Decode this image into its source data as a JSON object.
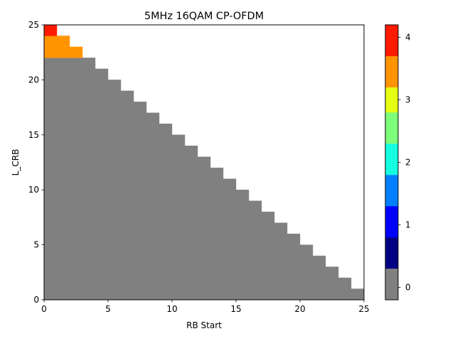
{
  "chart_data": {
    "type": "heatmap",
    "title": "5MHz 16QAM CP-OFDM",
    "xlabel": "RB Start",
    "ylabel": "L_CRB",
    "xlim": [
      0,
      25
    ],
    "ylim": [
      0,
      25
    ],
    "xticks": [
      "0",
      "5",
      "10",
      "15",
      "20",
      "25"
    ],
    "yticks": [
      "0",
      "5",
      "10",
      "15",
      "20",
      "25"
    ],
    "grid": false,
    "description": "Value for cell (RB Start = s, L_CRB = L) shown where s + L <= 25; upper-right triangle is empty",
    "columns": [
      {
        "rb_start": 0,
        "values": [
          0,
          0,
          0,
          0,
          0,
          0,
          0,
          0,
          0,
          0,
          0,
          0,
          0,
          0,
          0,
          0,
          0,
          0,
          0,
          0,
          0,
          0,
          3.6,
          3.6,
          4
        ]
      },
      {
        "rb_start": 1,
        "values": [
          0,
          0,
          0,
          0,
          0,
          0,
          0,
          0,
          0,
          0,
          0,
          0,
          0,
          0,
          0,
          0,
          0,
          0,
          0,
          0,
          0,
          0,
          3.6,
          3.6
        ]
      },
      {
        "rb_start": 2,
        "values": [
          0,
          0,
          0,
          0,
          0,
          0,
          0,
          0,
          0,
          0,
          0,
          0,
          0,
          0,
          0,
          0,
          0,
          0,
          0,
          0,
          0,
          0,
          3.6
        ]
      },
      {
        "rb_start": 3,
        "values": [
          0,
          0,
          0,
          0,
          0,
          0,
          0,
          0,
          0,
          0,
          0,
          0,
          0,
          0,
          0,
          0,
          0,
          0,
          0,
          0,
          0,
          0
        ]
      },
      {
        "rb_start": 4,
        "values": [
          0,
          0,
          0,
          0,
          0,
          0,
          0,
          0,
          0,
          0,
          0,
          0,
          0,
          0,
          0,
          0,
          0,
          0,
          0,
          0,
          0
        ]
      },
      {
        "rb_start": 5,
        "values": [
          0,
          0,
          0,
          0,
          0,
          0,
          0,
          0,
          0,
          0,
          0,
          0,
          0,
          0,
          0,
          0,
          0,
          0,
          0,
          0
        ]
      },
      {
        "rb_start": 6,
        "values": [
          0,
          0,
          0,
          0,
          0,
          0,
          0,
          0,
          0,
          0,
          0,
          0,
          0,
          0,
          0,
          0,
          0,
          0,
          0
        ]
      },
      {
        "rb_start": 7,
        "values": [
          0,
          0,
          0,
          0,
          0,
          0,
          0,
          0,
          0,
          0,
          0,
          0,
          0,
          0,
          0,
          0,
          0,
          0
        ]
      },
      {
        "rb_start": 8,
        "values": [
          0,
          0,
          0,
          0,
          0,
          0,
          0,
          0,
          0,
          0,
          0,
          0,
          0,
          0,
          0,
          0,
          0
        ]
      },
      {
        "rb_start": 9,
        "values": [
          0,
          0,
          0,
          0,
          0,
          0,
          0,
          0,
          0,
          0,
          0,
          0,
          0,
          0,
          0,
          0
        ]
      },
      {
        "rb_start": 10,
        "values": [
          0,
          0,
          0,
          0,
          0,
          0,
          0,
          0,
          0,
          0,
          0,
          0,
          0,
          0,
          0
        ]
      },
      {
        "rb_start": 11,
        "values": [
          0,
          0,
          0,
          0,
          0,
          0,
          0,
          0,
          0,
          0,
          0,
          0,
          0,
          0
        ]
      },
      {
        "rb_start": 12,
        "values": [
          0,
          0,
          0,
          0,
          0,
          0,
          0,
          0,
          0,
          0,
          0,
          0,
          0
        ]
      },
      {
        "rb_start": 13,
        "values": [
          0,
          0,
          0,
          0,
          0,
          0,
          0,
          0,
          0,
          0,
          0,
          0
        ]
      },
      {
        "rb_start": 14,
        "values": [
          0,
          0,
          0,
          0,
          0,
          0,
          0,
          0,
          0,
          0,
          0
        ]
      },
      {
        "rb_start": 15,
        "values": [
          0,
          0,
          0,
          0,
          0,
          0,
          0,
          0,
          0,
          0
        ]
      },
      {
        "rb_start": 16,
        "values": [
          0,
          0,
          0,
          0,
          0,
          0,
          0,
          0,
          0
        ]
      },
      {
        "rb_start": 17,
        "values": [
          0,
          0,
          0,
          0,
          0,
          0,
          0,
          0
        ]
      },
      {
        "rb_start": 18,
        "values": [
          0,
          0,
          0,
          0,
          0,
          0,
          0
        ]
      },
      {
        "rb_start": 19,
        "values": [
          0,
          0,
          0,
          0,
          0,
          0
        ]
      },
      {
        "rb_start": 20,
        "values": [
          0,
          0,
          0,
          0,
          0
        ]
      },
      {
        "rb_start": 21,
        "values": [
          0,
          0,
          0,
          0
        ]
      },
      {
        "rb_start": 22,
        "values": [
          0,
          0,
          0
        ]
      },
      {
        "rb_start": 23,
        "values": [
          0,
          0
        ]
      },
      {
        "rb_start": 24,
        "values": [
          0
        ]
      }
    ],
    "colorbar": {
      "range": [
        -0.2,
        4.2
      ],
      "ticks": [
        "0",
        "1",
        "2",
        "3",
        "4"
      ],
      "tick_values": [
        0,
        1,
        2,
        3,
        4
      ],
      "bins": [
        {
          "from": -0.2,
          "to": 0.3,
          "color": "#808080"
        },
        {
          "from": 0.3,
          "to": 0.8,
          "color": "#000080"
        },
        {
          "from": 0.8,
          "to": 1.3,
          "color": "#0000ff"
        },
        {
          "from": 1.3,
          "to": 1.8,
          "color": "#0080ff"
        },
        {
          "from": 1.8,
          "to": 2.3,
          "color": "#15ffe1"
        },
        {
          "from": 2.3,
          "to": 2.8,
          "color": "#7dff7a"
        },
        {
          "from": 2.8,
          "to": 3.2,
          "color": "#e4ff13"
        },
        {
          "from": 3.2,
          "to": 3.7,
          "color": "#ff9400"
        },
        {
          "from": 3.7,
          "to": 4.2,
          "color": "#ff1a00"
        }
      ]
    }
  }
}
